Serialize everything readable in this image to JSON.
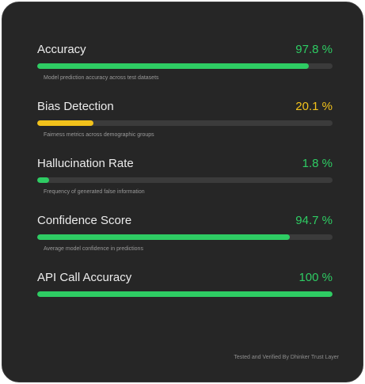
{
  "colors": {
    "green": "#2ecc63",
    "yellow": "#f2c21b",
    "track": "#3b3b3b",
    "card_bg": "#262626"
  },
  "metrics": [
    {
      "name": "Accuracy",
      "value": "97.8 %",
      "level": 0.92,
      "color": "green",
      "description": "Model prediction accuracy across test datasets"
    },
    {
      "name": "Bias Detection",
      "value": "20.1 %",
      "level": 0.19,
      "color": "yellow",
      "description": "Fairness metrics across demographic groups"
    },
    {
      "name": "Hallucination Rate",
      "value": "1.8 %",
      "level": 0.04,
      "color": "green",
      "description": "Frequency of generated false information"
    },
    {
      "name": "Confidence Score",
      "value": "94.7 %",
      "level": 0.855,
      "color": "green",
      "description": "Average model confidence in predictions"
    },
    {
      "name": "API Call Accuracy",
      "value": "100 %",
      "level": 1.0,
      "color": "green",
      "description": ""
    }
  ],
  "footer": "Tested and Verified By Dhinker Trust Layer"
}
